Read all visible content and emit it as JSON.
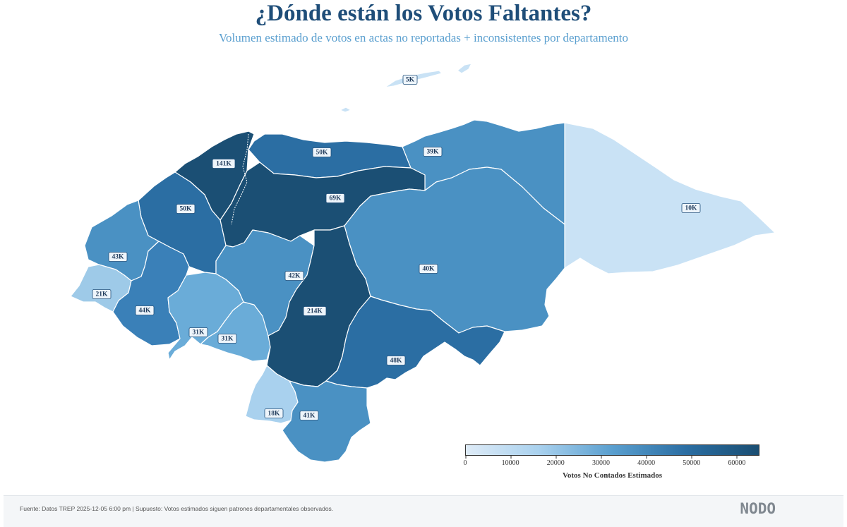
{
  "header": {
    "title": "¿Dónde están los Votos Faltantes?",
    "subtitle": "Volumen estimado de votos en actas no reportadas + inconsistentes por departamento"
  },
  "legend": {
    "title": "Votos No Contados Estimados",
    "ticks": [
      "0",
      "10000",
      "20000",
      "30000",
      "40000",
      "50000",
      "60000"
    ],
    "min": 0,
    "max": 65000,
    "color_low": "#deebf7",
    "color_high": "#1a4e72"
  },
  "regions": [
    {
      "id": "islas-bahia",
      "label": "5K",
      "color": "#c9e2f5"
    },
    {
      "id": "cortes",
      "label": "141K",
      "color": "#1b4f74"
    },
    {
      "id": "atlantida",
      "label": "50K",
      "color": "#2b6ea3"
    },
    {
      "id": "colon",
      "label": "39K",
      "color": "#4a91c3"
    },
    {
      "id": "gracias-a-dios",
      "label": "10K",
      "color": "#c9e2f5"
    },
    {
      "id": "santa-barbara",
      "label": "50K",
      "color": "#2b6ea3"
    },
    {
      "id": "yoro",
      "label": "69K",
      "color": "#1b4f74"
    },
    {
      "id": "olancho",
      "label": "40K",
      "color": "#4a91c3"
    },
    {
      "id": "copan",
      "label": "43K",
      "color": "#4a91c3"
    },
    {
      "id": "ocotepeque",
      "label": "21K",
      "color": "#9ecae8"
    },
    {
      "id": "lempira",
      "label": "44K",
      "color": "#3a80b8"
    },
    {
      "id": "intibuca",
      "label": "31K",
      "color": "#6aacd8"
    },
    {
      "id": "comayagua",
      "label": "42K",
      "color": "#4a91c3"
    },
    {
      "id": "la-paz",
      "label": "31K",
      "color": "#6aacd8"
    },
    {
      "id": "francisco-morazan",
      "label": "214K",
      "color": "#1b4f74"
    },
    {
      "id": "el-paraiso",
      "label": "48K",
      "color": "#2b6ea3"
    },
    {
      "id": "valle",
      "label": "18K",
      "color": "#a9d1ee"
    },
    {
      "id": "choluteca",
      "label": "41K",
      "color": "#4a91c3"
    }
  ],
  "footer": {
    "source": "Fuente: Datos TREP 2025-12-05 6:00 pm | Supuesto: Votos estimados siguen patrones departamentales observados.",
    "logo": "NODO"
  }
}
